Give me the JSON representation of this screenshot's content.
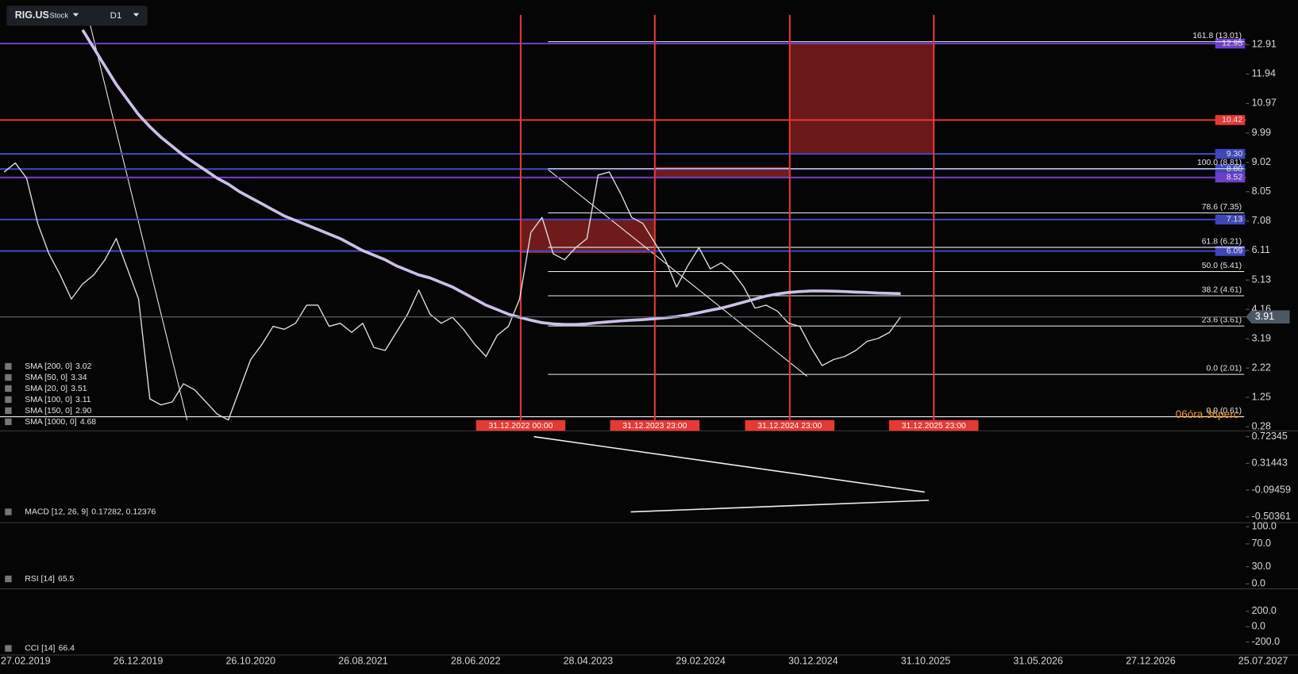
{
  "toolbar": {
    "symbol": "RIG.US",
    "asset_type": "Stock",
    "timeframe": "D1"
  },
  "countdown": "06óra 36perc",
  "time_axis": {
    "labels": [
      "27.02.2019",
      "26.12.2019",
      "26.10.2020",
      "26.08.2021",
      "28.06.2022",
      "28.04.2023",
      "29.02.2024",
      "30.12.2024",
      "31.10.2025",
      "31.05.2026",
      "27.12.2026",
      "25.07.2027"
    ]
  },
  "chart_data": [
    {
      "type": "line",
      "ylim": [
        0.17,
        14.17
      ],
      "yticks": [
        12.91,
        11.94,
        10.97,
        9.99,
        9.02,
        8.05,
        7.08,
        6.11,
        5.13,
        4.16,
        3.19,
        2.22,
        1.25,
        0.28
      ],
      "series": [
        {
          "color": "#e0e0e0",
          "values": [
            8.7,
            9.0,
            8.5,
            7.0,
            6.0,
            5.3,
            4.5,
            5.0,
            5.3,
            5.8,
            6.5,
            5.5,
            4.5,
            1.2,
            1.0,
            1.1,
            1.7,
            1.5,
            1.1,
            0.7,
            0.5,
            1.5,
            2.5,
            3.0,
            3.6,
            3.5,
            3.7,
            4.3,
            4.3,
            3.6,
            3.7,
            3.4,
            3.7,
            2.9,
            2.8,
            3.4,
            4.0,
            4.8,
            4.0,
            3.7,
            3.9,
            3.5,
            3.0,
            2.6,
            3.3,
            3.6,
            4.5,
            6.7,
            7.2,
            6.0,
            5.8,
            6.2,
            6.5,
            8.6,
            8.7,
            8.0,
            7.2,
            7.0,
            6.4,
            5.8,
            4.9,
            5.6,
            6.2,
            5.5,
            5.7,
            5.4,
            4.9,
            4.2,
            4.3,
            4.1,
            3.7,
            3.6,
            2.9,
            2.3,
            2.5,
            2.6,
            2.8,
            3.1,
            3.2,
            3.4,
            3.91
          ]
        },
        {
          "color": "#cdbfe8",
          "values": [
            null,
            null,
            null,
            null,
            null,
            null,
            null,
            13.4,
            12.8,
            12.2,
            11.6,
            11.1,
            10.6,
            10.2,
            9.85,
            9.55,
            9.25,
            9.0,
            8.75,
            8.5,
            8.3,
            8.05,
            7.85,
            7.65,
            7.45,
            7.25,
            7.1,
            6.95,
            6.8,
            6.65,
            6.5,
            6.3,
            6.1,
            5.95,
            5.8,
            5.6,
            5.45,
            5.3,
            5.2,
            5.05,
            4.9,
            4.7,
            4.5,
            4.3,
            4.15,
            4.0,
            3.9,
            3.8,
            3.72,
            3.68,
            3.66,
            3.66,
            3.68,
            3.72,
            3.75,
            3.78,
            3.8,
            3.82,
            3.85,
            3.88,
            3.92,
            3.98,
            4.05,
            4.13,
            4.2,
            4.3,
            4.4,
            4.5,
            4.6,
            4.67,
            4.72,
            4.75,
            4.77,
            4.77,
            4.76,
            4.75,
            4.73,
            4.72,
            4.7,
            4.69,
            4.68
          ]
        }
      ],
      "levels": [
        {
          "value": 12.95,
          "color": "#6b3fc8"
        },
        {
          "value": 10.42,
          "color": "#e53935"
        },
        {
          "value": 9.3,
          "label": "9.30",
          "color": "#3f46b8"
        },
        {
          "value": 8.8,
          "label": "8.80",
          "color": "#3f46b8"
        },
        {
          "value": 8.52,
          "color": "#6b3fc8"
        },
        {
          "value": 7.13,
          "color": "#3f46b8"
        },
        {
          "value": 6.09,
          "color": "#3f46b8"
        }
      ],
      "last_price": 3.91,
      "fib_levels": [
        {
          "value": 13.01,
          "label": "161.8 (13.01)"
        },
        {
          "value": 8.81,
          "label": "100.0 (8.81)"
        },
        {
          "value": 7.35,
          "label": "78.6 (7.35)"
        },
        {
          "value": 6.21,
          "label": "61.8 (6.21)"
        },
        {
          "value": 5.41,
          "label": "50.0 (5.41)"
        },
        {
          "value": 4.61,
          "label": "38.2 (4.61)"
        },
        {
          "value": 3.61,
          "label": "23.6 (3.61)"
        },
        {
          "value": 2.01,
          "label": "0.0 (2.01)"
        },
        {
          "value": 0.61,
          "label": "0.0 (0.61)"
        }
      ],
      "period_markers": [
        "31.12.2022 00:00",
        "31.12.2023 23:00",
        "31.12.2024 23:00",
        "31.12.2025 23:00"
      ],
      "indicators": [
        {
          "label": "SMA [200, 0]",
          "value": 3.02
        },
        {
          "label": "SMA [50, 0]",
          "value": 3.34
        },
        {
          "label": "SMA [20, 0]",
          "value": 3.51
        },
        {
          "label": "SMA [100, 0]",
          "value": 3.11
        },
        {
          "label": "SMA [150, 0]",
          "value": 2.9,
          "value_label": "2.90"
        },
        {
          "label": "SMA [1000, 0]",
          "value": 4.68
        }
      ]
    },
    {
      "type": "line",
      "title": "MACD [12, 26, 9]",
      "value_label": "0.17282, 0.12376",
      "ylim": [
        -0.592,
        0.799
      ],
      "yticks": [
        0.72345,
        0.31443,
        -0.09459,
        -0.50361
      ]
    },
    {
      "type": "line",
      "title": "RSI [14]",
      "value": 65.5,
      "ylim": [
        -8.7,
        107.2
      ],
      "yticks": [
        {
          "value": 100,
          "label": "100.0"
        },
        {
          "value": 70,
          "label": "70.0"
        },
        {
          "value": 30,
          "label": "30.0"
        },
        {
          "value": 0,
          "label": "0.0"
        }
      ]
    },
    {
      "type": "line",
      "title": "CCI [14]",
      "value": 66.4,
      "ylim": [
        -368,
        492
      ],
      "yticks": [
        {
          "value": 200,
          "label": "200.0"
        },
        {
          "value": 0,
          "label": "0.0"
        },
        {
          "value": -200,
          "label": "-200.0"
        }
      ]
    }
  ]
}
